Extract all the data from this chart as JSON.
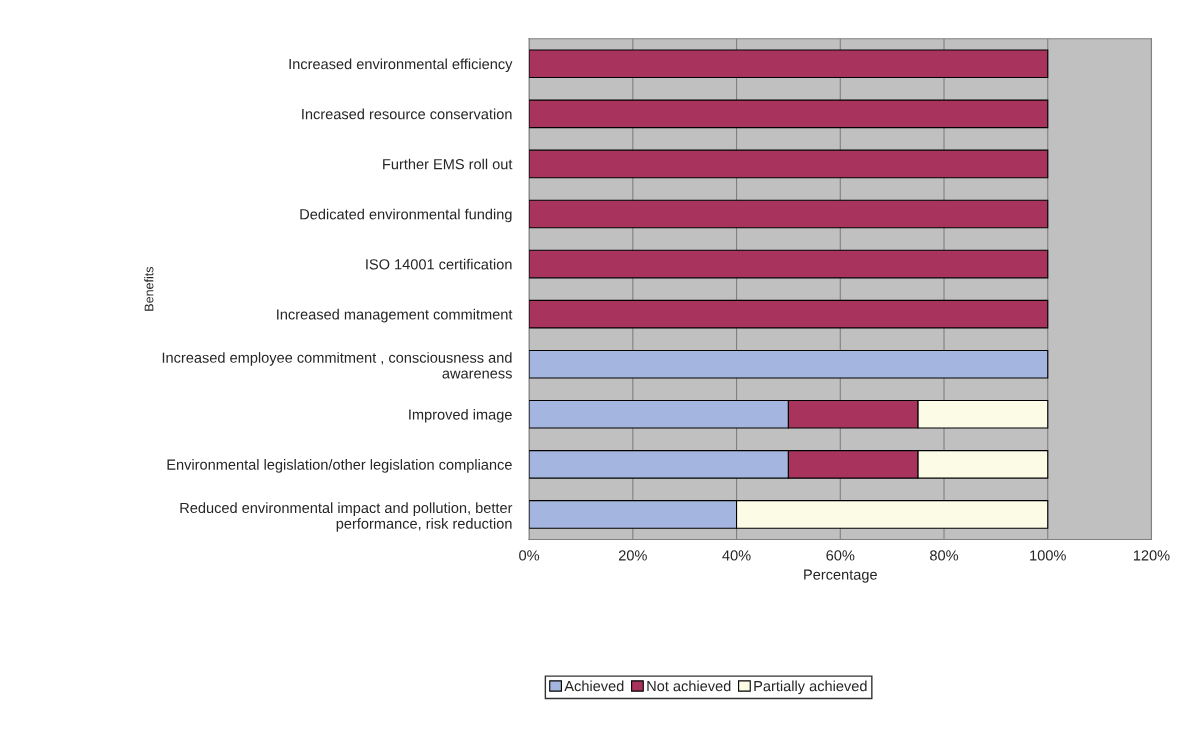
{
  "chart_data": {
    "type": "bar",
    "orientation": "horizontal",
    "stacked": true,
    "xlabel": "Percentage",
    "ylabel": "Benefits",
    "categories": [
      "Increased environmental efficiency",
      "Increased resource conservation",
      "Further EMS roll out",
      "Dedicated environmental funding",
      "ISO 14001 certification",
      "Increased management commitment",
      "Increased employee commitment , consciousness and\nawareness",
      "Improved image",
      "Environmental legislation/other legislation compliance",
      "Reduced environmental impact and pollution, better\nperformance, risk reduction"
    ],
    "series": [
      {
        "name": "Achieved",
        "color": "#a4b6e0",
        "values": [
          null,
          null,
          null,
          null,
          null,
          null,
          100,
          50,
          50,
          40
        ]
      },
      {
        "name": "Not achieved",
        "color": "#a8345e",
        "values": [
          100,
          100,
          100,
          100,
          100,
          100,
          null,
          25,
          25,
          null
        ]
      },
      {
        "name": "Partially achieved",
        "color": "#fbfbe6",
        "values": [
          null,
          null,
          null,
          null,
          null,
          null,
          null,
          25,
          25,
          60
        ]
      }
    ],
    "xlim": [
      0,
      120
    ],
    "xticks": [
      {
        "value": 0,
        "label": "0%"
      },
      {
        "value": 20,
        "label": "20%"
      },
      {
        "value": 40,
        "label": "40%"
      },
      {
        "value": 60,
        "label": "60%"
      },
      {
        "value": 80,
        "label": "80%"
      },
      {
        "value": 100,
        "label": "100%"
      },
      {
        "value": 120,
        "label": "120%"
      }
    ],
    "grid": "x",
    "legend": "bottom"
  }
}
